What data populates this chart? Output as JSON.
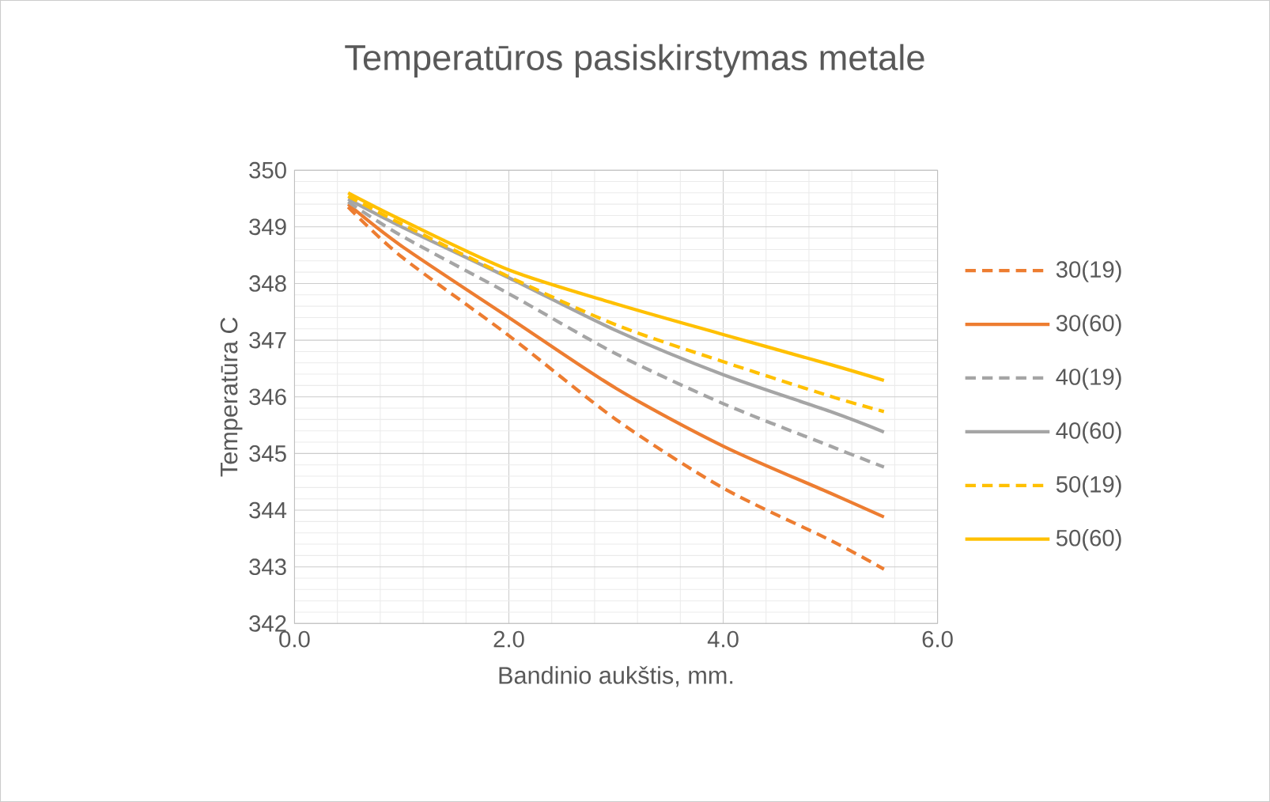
{
  "chart_data": {
    "type": "line",
    "title": "Temperatūros pasiskirstymas metale",
    "xlabel": "Bandinio aukštis, mm.",
    "ylabel": "Temperatūra C",
    "x": [
      0.5,
      1,
      2,
      3,
      4,
      5,
      5.5
    ],
    "series": [
      {
        "name": "30(19)",
        "color": "#ed7d31",
        "line_style": "dashed",
        "values": [
          349.35,
          348.47,
          347.08,
          345.6,
          344.39,
          343.47,
          342.96
        ]
      },
      {
        "name": "30(60)",
        "color": "#ed7d31",
        "line_style": "solid",
        "values": [
          349.4,
          348.66,
          347.4,
          346.15,
          345.13,
          344.3,
          343.88
        ]
      },
      {
        "name": "40(19)",
        "color": "#a5a5a5",
        "line_style": "dashed",
        "values": [
          349.44,
          348.84,
          347.82,
          346.76,
          345.88,
          345.13,
          344.76
        ]
      },
      {
        "name": "40(60)",
        "color": "#a5a5a5",
        "line_style": "solid",
        "values": [
          349.49,
          349.0,
          348.1,
          347.17,
          346.39,
          345.74,
          345.38
        ]
      },
      {
        "name": "50(19)",
        "color": "#ffc000",
        "line_style": "dashed",
        "values": [
          349.54,
          349.05,
          348.12,
          347.27,
          346.62,
          346.01,
          345.74
        ]
      },
      {
        "name": "50(60)",
        "color": "#ffc000",
        "line_style": "solid",
        "values": [
          349.6,
          349.12,
          348.24,
          347.64,
          347.1,
          346.57,
          346.29
        ]
      }
    ],
    "xlim": [
      0,
      6
    ],
    "xticks": [
      {
        "value": 0,
        "label": "0.0"
      },
      {
        "value": 2,
        "label": "2.0"
      },
      {
        "value": 4,
        "label": "4.0"
      },
      {
        "value": 6,
        "label": "6.0"
      }
    ],
    "ylim": [
      342,
      350
    ],
    "yticks": [
      342,
      343,
      344,
      345,
      346,
      347,
      348,
      349,
      350
    ],
    "grid": true,
    "legend": "right",
    "marker": "none"
  }
}
